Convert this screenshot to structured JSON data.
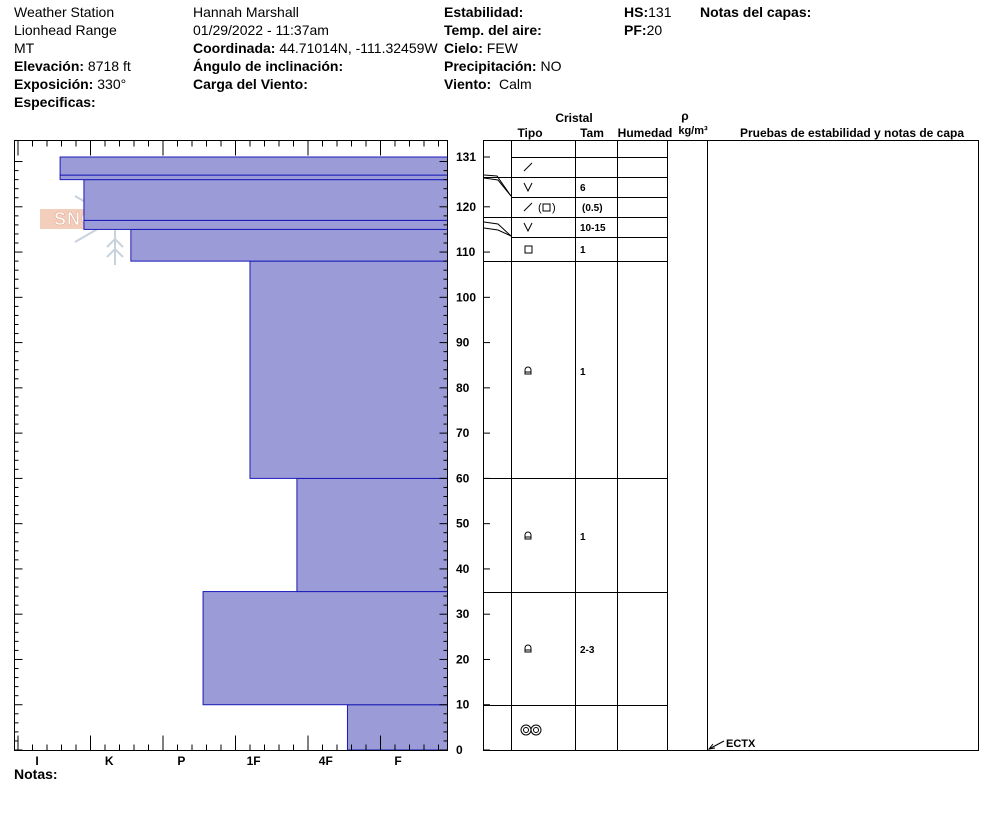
{
  "header": {
    "location_name": "Weather Station",
    "range": "Lionhead Range",
    "state": "MT",
    "elevation_label": "Elevación:",
    "elevation_value": "8718 ft",
    "aspect_label": "Exposición:",
    "aspect_value": "330°",
    "specifics_label": "Especificas:",
    "observer": "Hannah Marshall",
    "datetime": "01/29/2022 - 11:37am",
    "coord_label": "Coordinada:",
    "coord_value": "44.71014N, -111.32459W",
    "slope_label": "Ángulo de inclinación:",
    "wind_load_label": "Carga del Viento:",
    "stability_label": "Estabilidad:",
    "air_temp_label": "Temp. del aire:",
    "sky_label": "Cielo:",
    "sky_value": "FEW",
    "precip_label": "Precipitación:",
    "precip_value": "NO",
    "wind_label": "Viento:",
    "wind_value": "Calm",
    "hs_label": "HS:",
    "hs_value": "131",
    "pf_label": "PF:",
    "pf_value": "20",
    "layer_notes_label": "Notas del capas:"
  },
  "logo_text": "SNOW PILOT",
  "notes_label": "Notas:",
  "columns": {
    "crystal": "Cristal",
    "type": "Tipo",
    "size": "Tam",
    "humidity": "Humedad",
    "density_symbol": "ρ",
    "density_unit": "kg/m³",
    "tests": "Pruebas de estabilidad y notas de capa"
  },
  "test_result": {
    "label": "ECTX",
    "height": 0
  },
  "chart_data": {
    "type": "bar",
    "title": "",
    "xlabel": "",
    "ylabel": "",
    "ylim": [
      0,
      131
    ],
    "y_ticks": [
      0,
      10,
      20,
      30,
      40,
      50,
      60,
      70,
      80,
      90,
      100,
      110,
      120,
      131
    ],
    "hardness_levels": [
      "I",
      "K",
      "P",
      "1F",
      "4F",
      "F"
    ],
    "layers": [
      {
        "bottom": 0,
        "top": 10,
        "hardness": 4.3
      },
      {
        "bottom": 10,
        "top": 35,
        "hardness": 2.3
      },
      {
        "bottom": 35,
        "top": 60,
        "hardness": 3.6
      },
      {
        "bottom": 60,
        "top": 108,
        "hardness": 2.95
      },
      {
        "bottom": 108,
        "top": 115,
        "hardness": 1.3
      },
      {
        "bottom": 115,
        "top": 117,
        "hardness": 0.65
      },
      {
        "bottom": 117,
        "top": 126,
        "hardness": 0.65
      },
      {
        "bottom": 126,
        "top": 127,
        "hardness": 0.32
      },
      {
        "bottom": 127,
        "top": 131,
        "hardness": 0.32
      }
    ],
    "crystals": [
      {
        "top": 131,
        "bottom": 127,
        "type": "fragments",
        "size": ""
      },
      {
        "top": 127,
        "bottom": 126,
        "type": "",
        "size": ""
      },
      {
        "top": 126,
        "bottom": 122,
        "type": "depth-hoar",
        "size": "6"
      },
      {
        "top": 122,
        "bottom": 117,
        "type": "fragments-faceted",
        "size": "(0.5)"
      },
      {
        "top": 117,
        "bottom": 115,
        "type": "",
        "size": ""
      },
      {
        "top": 115,
        "bottom": 108,
        "type": "depth-hoar",
        "size": "10-15"
      },
      {
        "top": 113,
        "bottom": 108,
        "type": "faceted",
        "size": "1"
      },
      {
        "top": 108,
        "bottom": 60,
        "type": "rounded-facets",
        "size": "1"
      },
      {
        "top": 60,
        "bottom": 35,
        "type": "rounded-facets",
        "size": "1"
      },
      {
        "top": 35,
        "bottom": 10,
        "type": "rounded-facets",
        "size": "2-3"
      },
      {
        "top": 10,
        "bottom": 0,
        "type": "melt-forms",
        "size": ""
      }
    ]
  }
}
